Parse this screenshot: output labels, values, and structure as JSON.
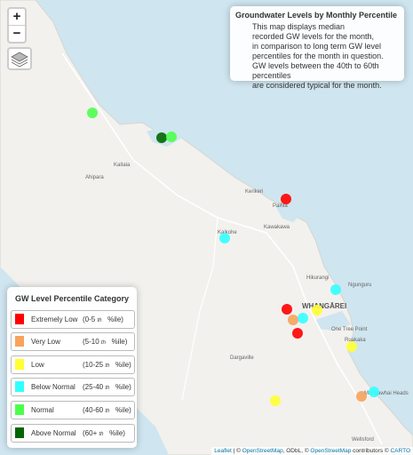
{
  "controls": {
    "zoom_in": "+",
    "zoom_out": "−"
  },
  "info": {
    "title": "Groundwater Levels by Monthly Percentile",
    "lines": [
      "This map displays median",
      "recorded GW levels for the month,",
      "in comparison to long term GW level",
      "percentiles for the month in question.",
      "GW levels between the 40th to 60th percentiles",
      "are considered typical for the month."
    ]
  },
  "legend": {
    "title": "GW Level Percentile Category",
    "items": [
      {
        "name": "Extremely Low",
        "range_pre": "(0-5",
        "th": "th",
        "range_post": "%ile)",
        "color": "#ff0000"
      },
      {
        "name": "Very Low",
        "range_pre": "(5-10",
        "th": "th",
        "range_post": "%ile)",
        "color": "#f7a35c"
      },
      {
        "name": "Low",
        "range_pre": "(10-25",
        "th": "th",
        "range_post": "%ile)",
        "color": "#ffff33"
      },
      {
        "name": "Below Normal",
        "range_pre": "(25-40",
        "th": "th",
        "range_post": "%ile)",
        "color": "#33ffff"
      },
      {
        "name": "Normal",
        "range_pre": "(40-60",
        "th": "th",
        "range_post": "%ile)",
        "color": "#4cff4c"
      },
      {
        "name": "Above Normal",
        "range_pre": "(60+",
        "th": "th",
        "range_post": "%ile)",
        "color": "#006600"
      }
    ]
  },
  "places": {
    "whangarei": "WHANGĀREI",
    "kaitaia": "Kaitaia",
    "ahipara": "Ahipara",
    "kerikeri": "Kerikeri",
    "paihia": "Paihia",
    "kawakawa": "Kawakawa",
    "kaikohe": "Kaikohe",
    "hikurangi": "Hikurangi",
    "ngunguru": "Ngunguru",
    "one_tree_point": "One Tree Point",
    "ruakaka": "Ruakaka",
    "dargaville": "Dargaville",
    "mangawhai_heads": "Mangawhai Heads",
    "wellsford": "Wellsford"
  },
  "sites": [
    {
      "category": "Normal",
      "color": "#4cff4c"
    },
    {
      "category": "Above Normal",
      "color": "#006600"
    },
    {
      "category": "Normal",
      "color": "#4cff4c"
    },
    {
      "category": "Extremely Low",
      "color": "#ff0000"
    },
    {
      "category": "Below Normal",
      "color": "#33ffff"
    },
    {
      "category": "Below Normal",
      "color": "#33ffff"
    },
    {
      "category": "Extremely Low",
      "color": "#ff0000"
    },
    {
      "category": "Very Low",
      "color": "#f7a35c"
    },
    {
      "category": "Below Normal",
      "color": "#33ffff"
    },
    {
      "category": "Low",
      "color": "#ffff33"
    },
    {
      "category": "Extremely Low",
      "color": "#ff0000"
    },
    {
      "category": "Low",
      "color": "#ffff33"
    },
    {
      "category": "Very Low",
      "color": "#f7a35c"
    },
    {
      "category": "Below Normal",
      "color": "#33ffff"
    },
    {
      "category": "Low",
      "color": "#ffff33"
    }
  ],
  "attribution": {
    "leaflet": "Leaflet",
    "sep1": " | © ",
    "osm1": "OpenStreetMap",
    "odbl": ", ODbL, © ",
    "osm2": "OpenStreetMap",
    "contrib": " contributors © ",
    "carto": "CARTO"
  }
}
